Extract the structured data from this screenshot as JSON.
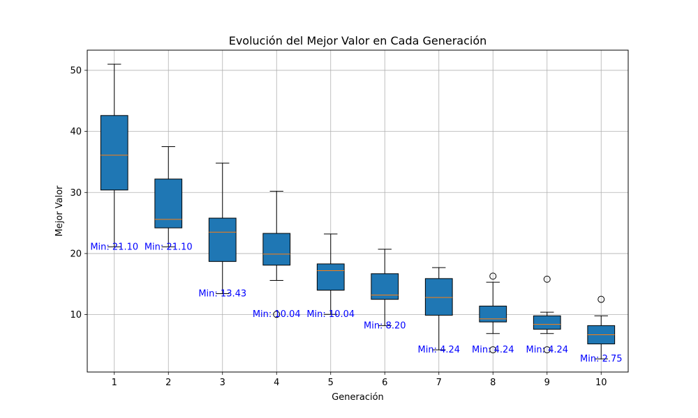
{
  "chart_data": {
    "type": "box",
    "title": "Evolución del Mejor Valor en Cada Generación",
    "xlabel": "Generación",
    "ylabel": "Mejor Valor",
    "categories": [
      "1",
      "2",
      "3",
      "4",
      "5",
      "6",
      "7",
      "8",
      "9",
      "10"
    ],
    "yticks": [
      10,
      20,
      30,
      40,
      50
    ],
    "ylim": [
      0.6,
      53.3
    ],
    "grid": true,
    "box_color": "#1f77b4",
    "median_color": "#ff7f0e",
    "annotation_color": "#0000ff",
    "boxes": [
      {
        "whisker_low": 21.1,
        "q1": 30.4,
        "median": 36.1,
        "q3": 42.6,
        "whisker_high": 51.0,
        "fliers": []
      },
      {
        "whisker_low": 21.1,
        "q1": 24.2,
        "median": 25.6,
        "q3": 32.2,
        "whisker_high": 37.5,
        "fliers": []
      },
      {
        "whisker_low": 13.43,
        "q1": 18.7,
        "median": 23.5,
        "q3": 25.8,
        "whisker_high": 34.8,
        "fliers": []
      },
      {
        "whisker_low": 15.6,
        "q1": 18.1,
        "median": 19.9,
        "q3": 23.3,
        "whisker_high": 30.2,
        "fliers": [
          10.04
        ]
      },
      {
        "whisker_low": 10.04,
        "q1": 14.0,
        "median": 17.2,
        "q3": 18.3,
        "whisker_high": 23.2,
        "fliers": []
      },
      {
        "whisker_low": 8.2,
        "q1": 12.5,
        "median": 13.2,
        "q3": 16.7,
        "whisker_high": 20.7,
        "fliers": []
      },
      {
        "whisker_low": 4.24,
        "q1": 9.9,
        "median": 12.8,
        "q3": 15.9,
        "whisker_high": 17.7,
        "fliers": []
      },
      {
        "whisker_low": 6.9,
        "q1": 8.8,
        "median": 9.3,
        "q3": 11.4,
        "whisker_high": 15.3,
        "fliers": [
          4.24,
          16.3
        ]
      },
      {
        "whisker_low": 6.9,
        "q1": 7.6,
        "median": 8.4,
        "q3": 9.8,
        "whisker_high": 10.4,
        "fliers": [
          4.24,
          15.8
        ]
      },
      {
        "whisker_low": 2.75,
        "q1": 5.2,
        "median": 6.7,
        "q3": 8.2,
        "whisker_high": 9.8,
        "fliers": [
          12.5
        ]
      }
    ],
    "annotations": [
      {
        "text": "Min: 21.10",
        "x": 1,
        "y": 21.1
      },
      {
        "text": "Min: 21.10",
        "x": 2,
        "y": 21.1
      },
      {
        "text": "Min: 13.43",
        "x": 3,
        "y": 13.43
      },
      {
        "text": "Min: 10.04",
        "x": 4,
        "y": 10.04
      },
      {
        "text": "Min: 10.04",
        "x": 5,
        "y": 10.04
      },
      {
        "text": "Min: 8.20",
        "x": 6,
        "y": 8.2
      },
      {
        "text": "Min: 4.24",
        "x": 7,
        "y": 4.24
      },
      {
        "text": "Min: 4.24",
        "x": 8,
        "y": 4.24
      },
      {
        "text": "Min: 4.24",
        "x": 9,
        "y": 4.24
      },
      {
        "text": "Min: 2.75",
        "x": 10,
        "y": 2.75
      }
    ]
  }
}
